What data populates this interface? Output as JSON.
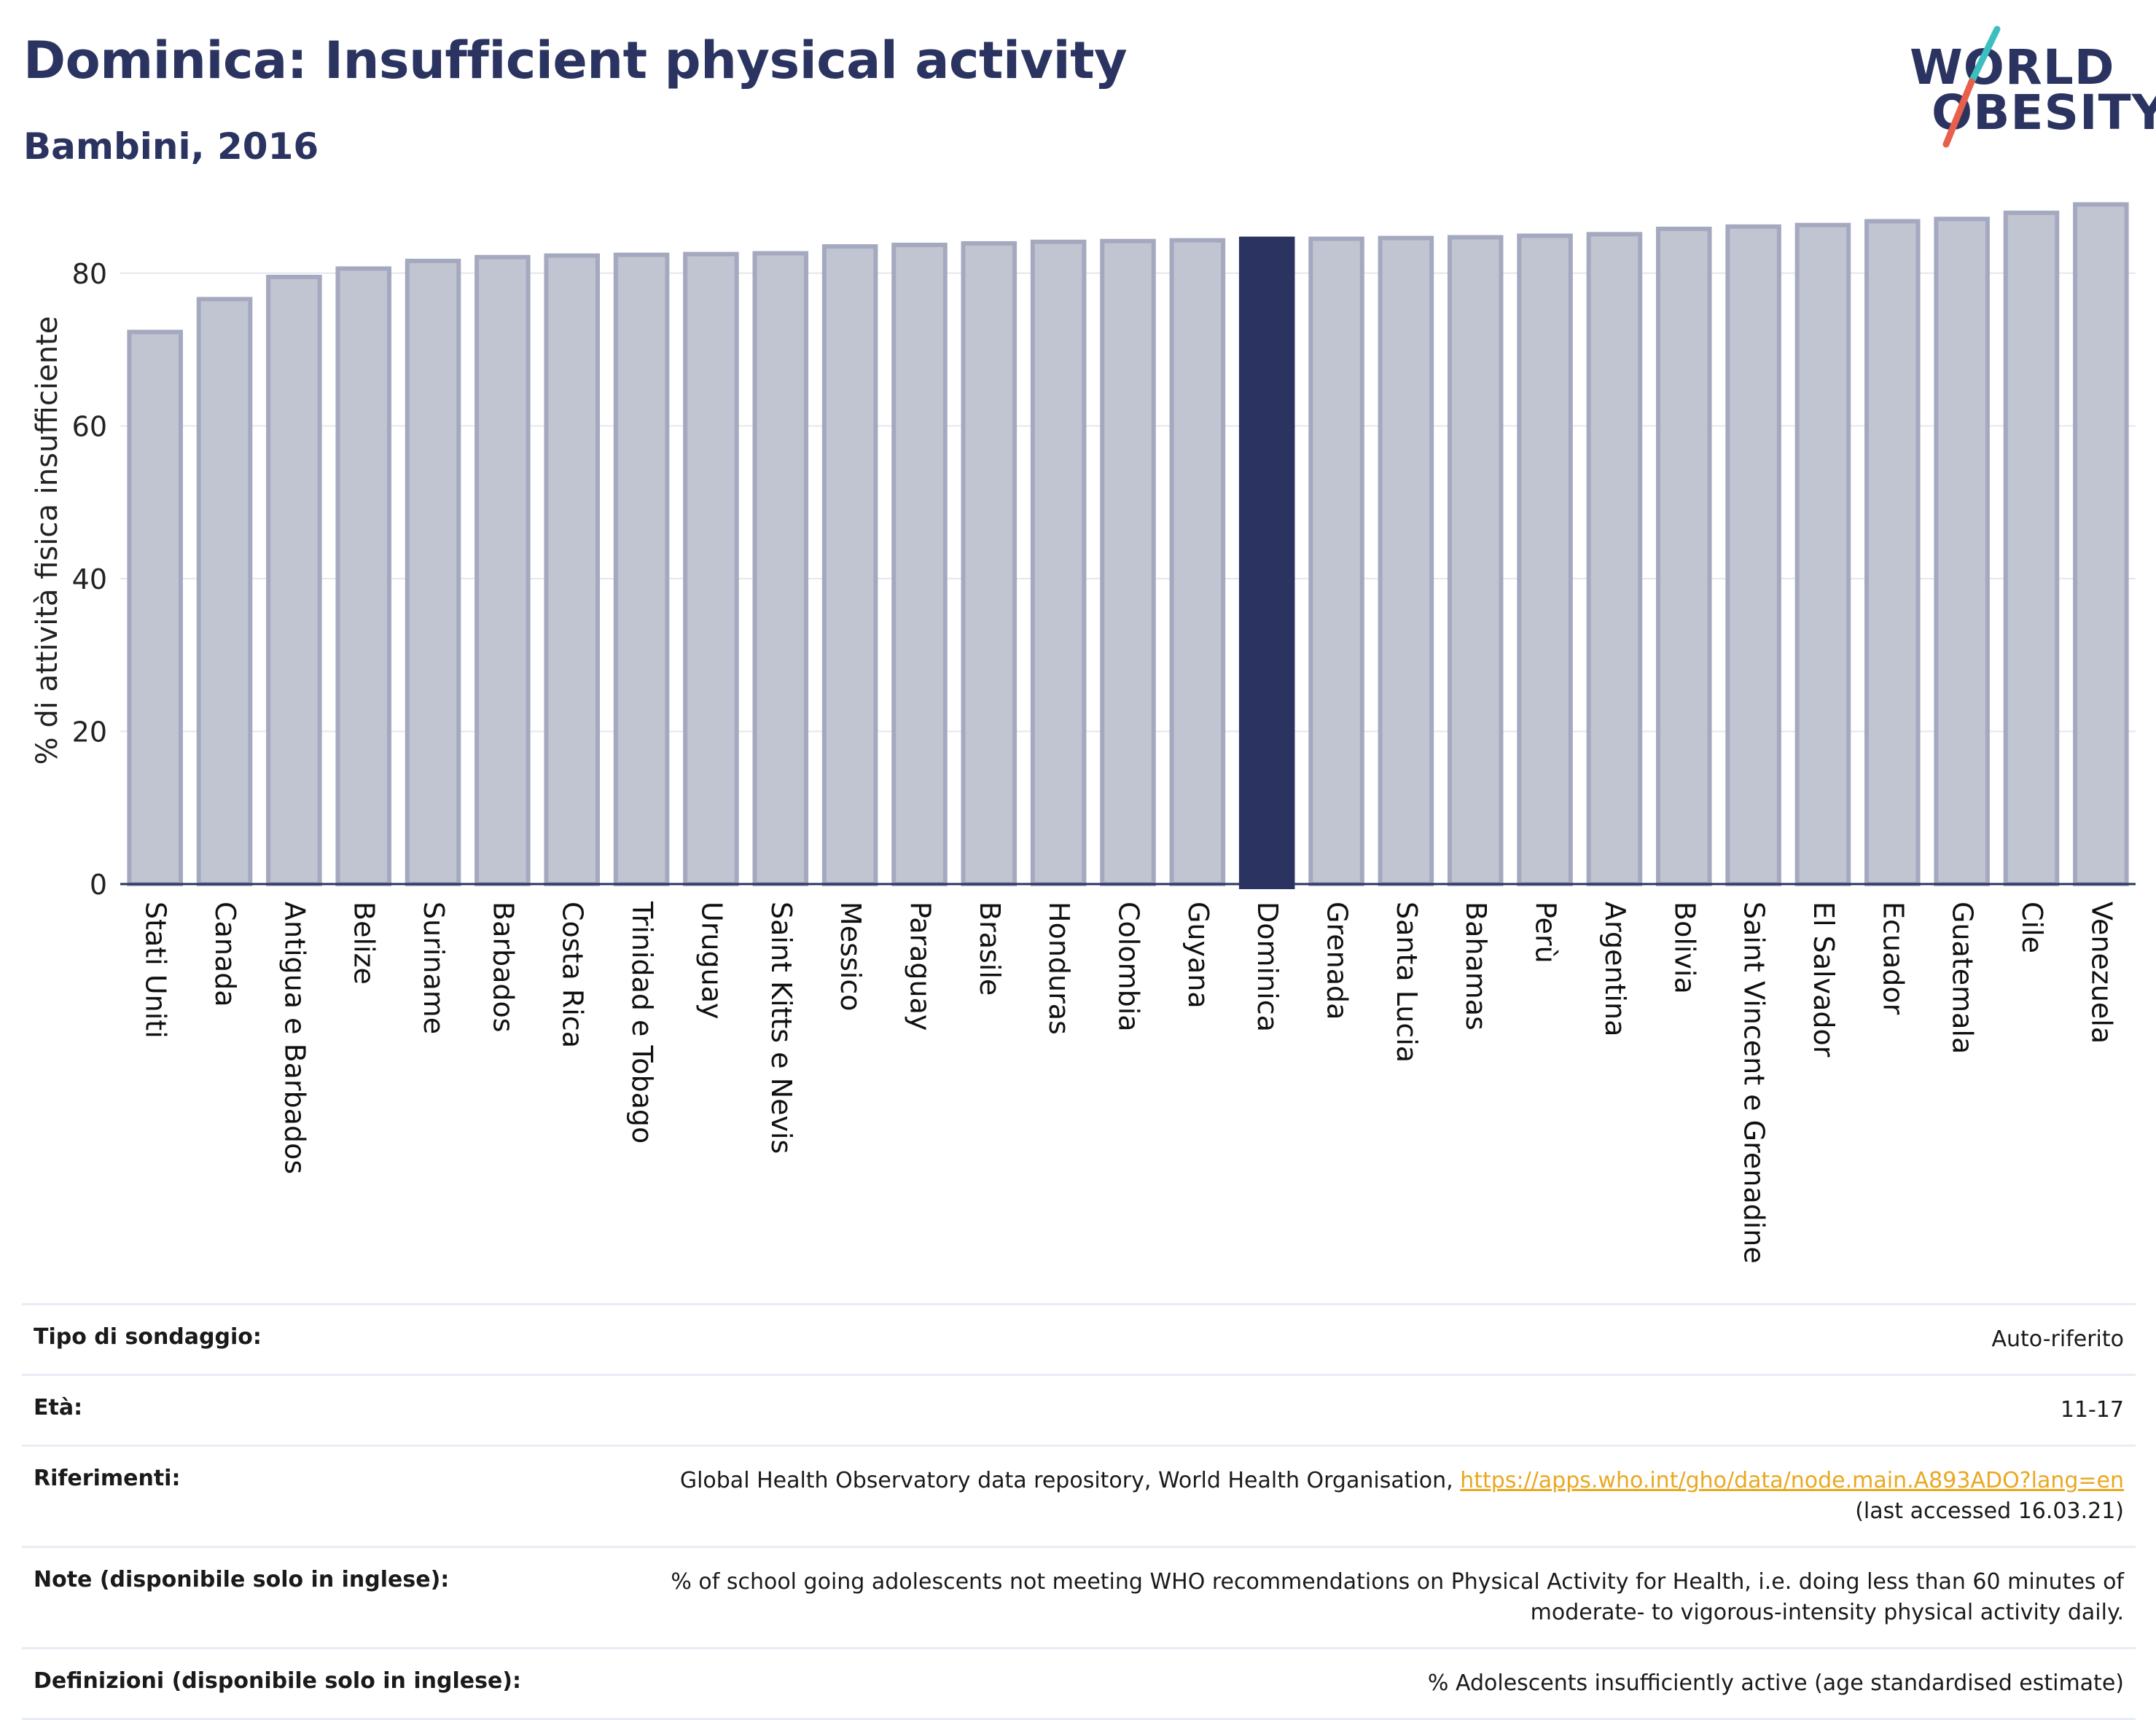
{
  "header": {
    "title": "Dominica: Insufficient physical activity",
    "subtitle": "Bambini, 2016"
  },
  "logo": {
    "line1": "WORLD",
    "line2": "OBESITY",
    "accent_colors": [
      "#e8604c",
      "#3dbfbf"
    ]
  },
  "colors": {
    "highlight_bar": "#2b3461",
    "other_bar_fill": "#c1c4d1",
    "other_bar_stroke": "#a4a9bf",
    "gridline": "#e6e6ee",
    "axis": "#2b3461",
    "link": "#e9a820"
  },
  "chart_data": {
    "type": "bar",
    "ylabel": "% di attività fisica insufficiente",
    "xlabel": "",
    "ylim": [
      0,
      90
    ],
    "yticks": [
      0,
      20,
      40,
      60,
      80
    ],
    "grid": true,
    "highlight": "Dominica",
    "categories": [
      "Stati Uniti",
      "Canada",
      "Antigua e Barbados",
      "Belize",
      "Suriname",
      "Barbados",
      "Costa Rica",
      "Trinidad e Tobago",
      "Uruguay",
      "Saint Kitts e Nevis",
      "Messico",
      "Paraguay",
      "Brasile",
      "Honduras",
      "Colombia",
      "Guyana",
      "Dominica",
      "Grenada",
      "Santa Lucia",
      "Bahamas",
      "Perù",
      "Argentina",
      "Bolivia",
      "Saint Vincent e Grenadine",
      "El Salvador",
      "Ecuador",
      "Guatemala",
      "Cile",
      "Venezuela"
    ],
    "values": [
      72.3,
      76.6,
      79.5,
      80.6,
      81.6,
      82.1,
      82.3,
      82.4,
      82.5,
      82.6,
      83.5,
      83.7,
      83.9,
      84.1,
      84.2,
      84.3,
      84.5,
      84.5,
      84.6,
      84.7,
      84.9,
      85.1,
      85.8,
      86.1,
      86.3,
      86.8,
      87.1,
      87.9,
      89.0
    ]
  },
  "info": {
    "rows": [
      {
        "label": "Tipo di sondaggio:",
        "value": "Auto-riferito"
      },
      {
        "label": "Età:",
        "value": "11-17"
      },
      {
        "label": "Riferimenti:",
        "value": "Global Health Observatory data repository, World Health Organisation,",
        "link": "https://apps.who.int/gho/data/node.main.A893ADO?lang=en",
        "value2": "(last accessed 16.03.21)"
      },
      {
        "label": "Note (disponibile solo in inglese):",
        "value": "% of school going adolescents not meeting WHO recommendations on Physical Activity for Health, i.e. doing less than 60 minutes of",
        "value2": "moderate- to vigorous-intensity physical activity daily."
      },
      {
        "label": "Definizioni (disponibile solo in inglese):",
        "value": "% Adolescents insufficiently active (age standardised estimate)"
      }
    ]
  }
}
